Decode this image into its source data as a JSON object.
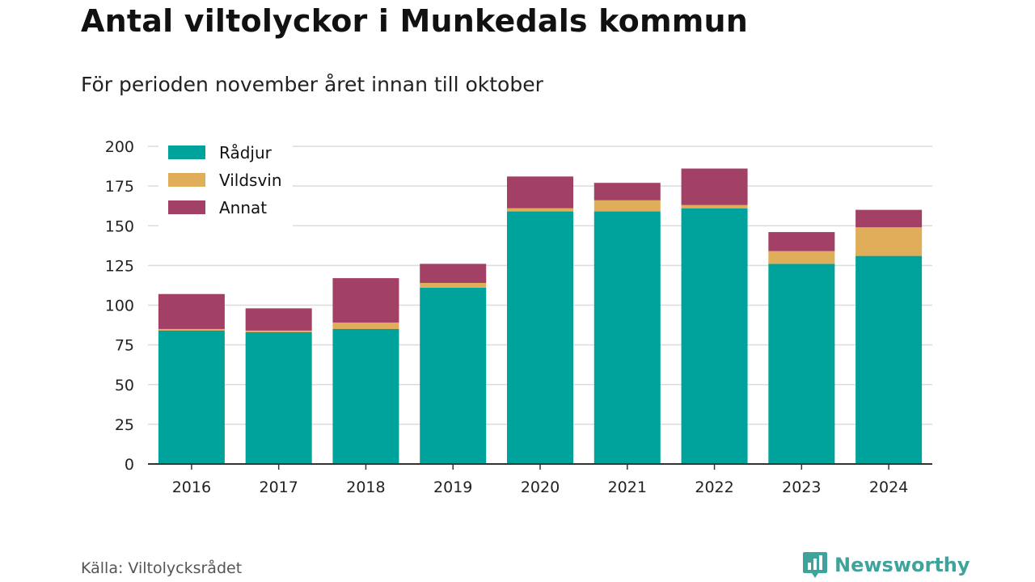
{
  "title": "Antal viltolyckor i Munkedals kommun",
  "subtitle": "För perioden november året innan till oktober",
  "source": "Källa: Viltolycksrådet",
  "brand": {
    "name": "Newsworthy",
    "icon": "newsworthy-logo-icon",
    "color": "#3fa39c"
  },
  "chart_data": {
    "type": "bar",
    "stacked": true,
    "title": "Antal viltolyckor i Munkedals kommun",
    "subtitle": "För perioden november året innan till oktober",
    "categories": [
      "2016",
      "2017",
      "2018",
      "2019",
      "2020",
      "2021",
      "2022",
      "2023",
      "2024"
    ],
    "series": [
      {
        "name": "Rådjur",
        "color": "#00a39b",
        "values": [
          84,
          83,
          85,
          111,
          159,
          159,
          161,
          126,
          131
        ]
      },
      {
        "name": "Vildsvin",
        "color": "#e0ad5a",
        "values": [
          1,
          1,
          4,
          3,
          2,
          7,
          2,
          8,
          18
        ]
      },
      {
        "name": "Annat",
        "color": "#a34066",
        "values": [
          22,
          14,
          28,
          12,
          20,
          11,
          23,
          12,
          11
        ]
      }
    ],
    "ylim": [
      0,
      200
    ],
    "yticks": [
      0,
      25,
      50,
      75,
      100,
      125,
      150,
      175,
      200
    ],
    "xlabel": "",
    "ylabel": "",
    "grid": true,
    "legend": "top-left"
  }
}
